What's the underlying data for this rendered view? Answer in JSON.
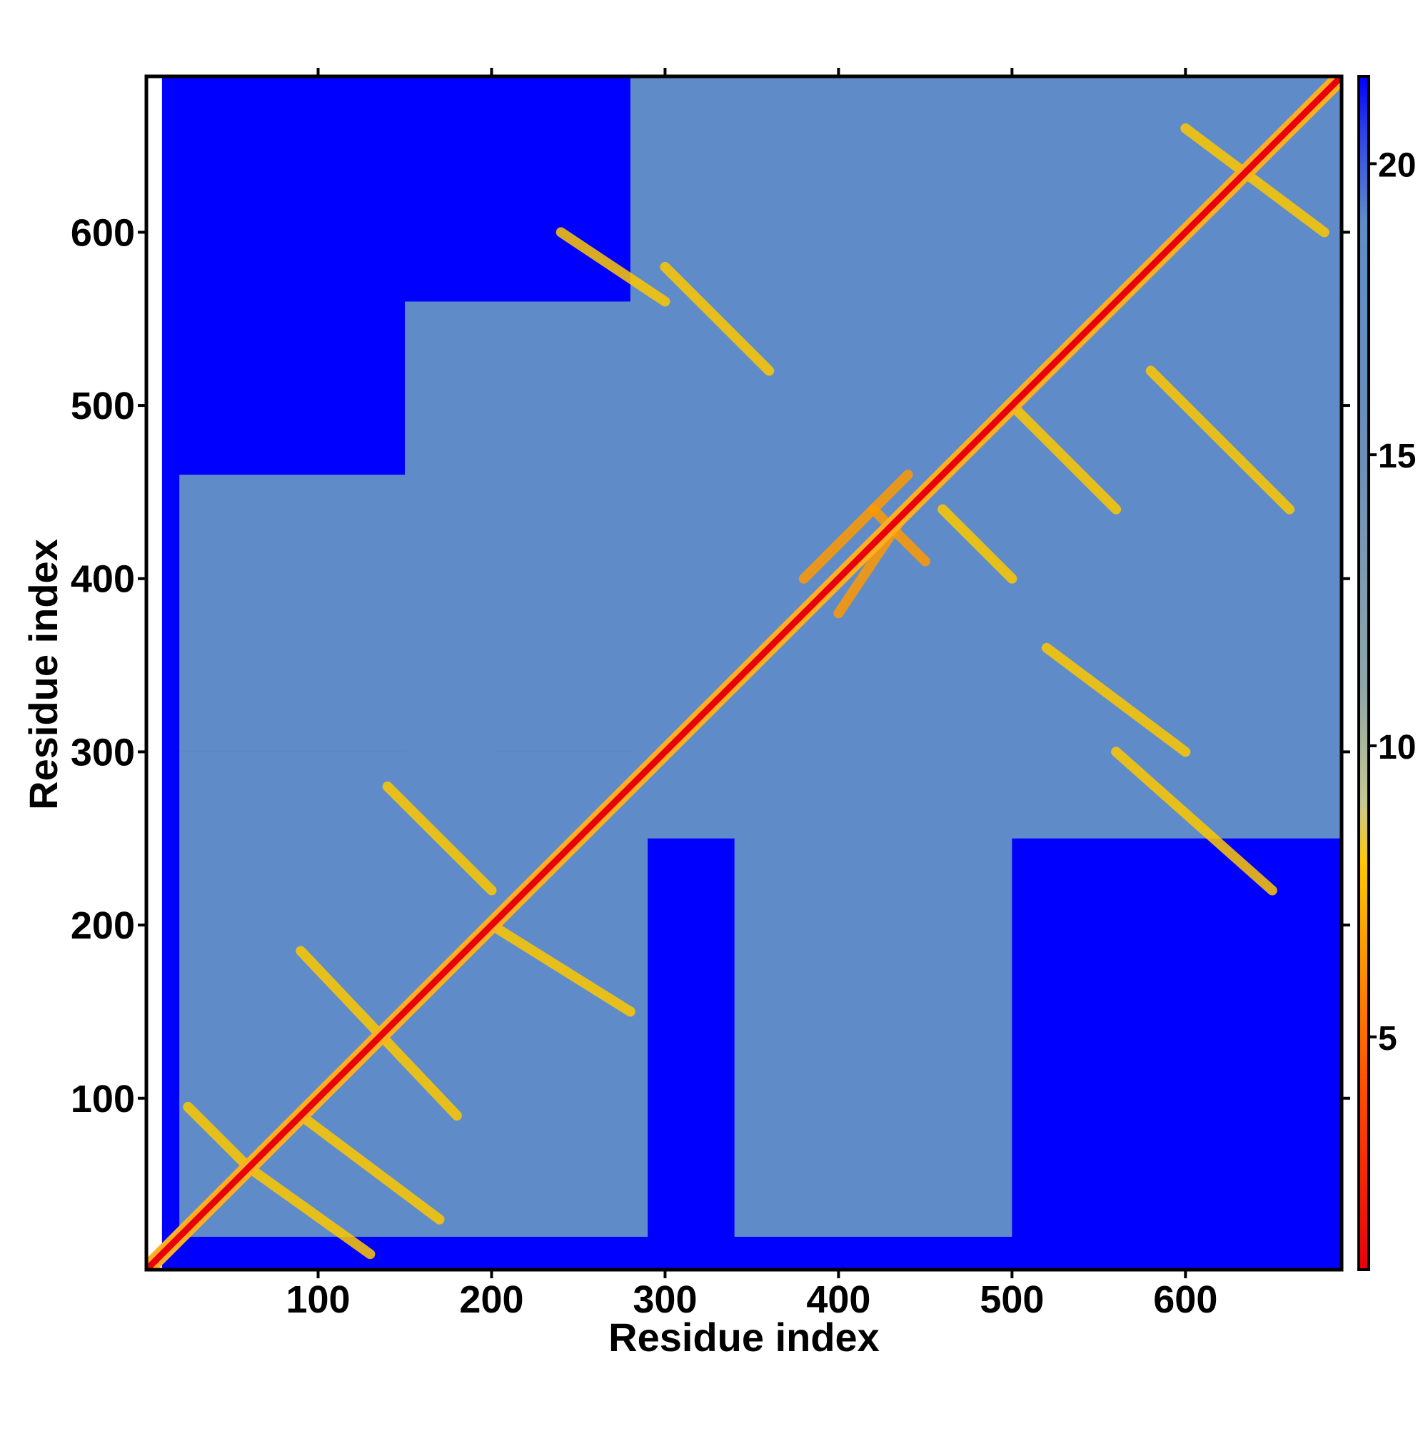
{
  "chart_data": {
    "type": "heatmap",
    "title": "",
    "xlabel": "Residue index",
    "ylabel": "Residue index",
    "xlim": [
      1,
      690
    ],
    "ylim": [
      1,
      690
    ],
    "x_ticks": [
      100,
      200,
      300,
      400,
      500,
      600
    ],
    "y_ticks": [
      100,
      200,
      300,
      400,
      500,
      600
    ],
    "x_tick_labels": [
      "100",
      "200",
      "300",
      "400",
      "500",
      "600"
    ],
    "y_tick_labels": [
      "100",
      "200",
      "300",
      "400",
      "500",
      "600"
    ],
    "colorbar": {
      "range": [
        1,
        21.5
      ],
      "ticks": [
        5,
        10,
        15,
        20
      ],
      "tick_labels": [
        "5",
        "10",
        "15",
        "20"
      ],
      "stops": [
        {
          "value": 1,
          "color": "#e8000b"
        },
        {
          "value": 4,
          "color": "#ff4a00"
        },
        {
          "value": 6.5,
          "color": "#ff9a00"
        },
        {
          "value": 8,
          "color": "#ffc800"
        },
        {
          "value": 9,
          "color": "#c8c890"
        },
        {
          "value": 11,
          "color": "#8fa6a8"
        },
        {
          "value": 15,
          "color": "#6b8fba"
        },
        {
          "value": 19,
          "color": "#5f8cc8"
        },
        {
          "value": 20.5,
          "color": "#2f45e8"
        },
        {
          "value": 21.5,
          "color": "#0000ff"
        }
      ]
    },
    "colors": {
      "far": "#0000ff",
      "mid": "#5f8ac6",
      "near": "#ffb020",
      "diagonal": "#e8000b"
    },
    "regions": [
      {
        "x": [
          10,
          690
        ],
        "y": [
          1,
          690
        ],
        "value": 21.5
      },
      {
        "x": [
          20,
          290
        ],
        "y": [
          20,
          300
        ],
        "value": 17
      },
      {
        "x": [
          280,
          690
        ],
        "y": [
          250,
          690
        ],
        "value": 17
      },
      {
        "x": [
          340,
          500
        ],
        "y": [
          20,
          690
        ],
        "value": 17
      },
      {
        "x": [
          150,
          690
        ],
        "y": [
          300,
          560
        ],
        "value": 17
      },
      {
        "x": [
          20,
          200
        ],
        "y": [
          300,
          460
        ],
        "value": 17
      }
    ],
    "contact_segments": [
      {
        "x": [
          60,
          130
        ],
        "y": [
          60,
          130
        ],
        "value": 7
      },
      {
        "x": [
          25,
          60
        ],
        "y": [
          95,
          60
        ],
        "value": 7
      },
      {
        "x": [
          60,
          130
        ],
        "y": [
          60,
          10
        ],
        "value": 7
      },
      {
        "x": [
          90,
          180
        ],
        "y": [
          185,
          90
        ],
        "value": 7
      },
      {
        "x": [
          200,
          280
        ],
        "y": [
          200,
          150
        ],
        "value": 7
      },
      {
        "x": [
          140,
          200
        ],
        "y": [
          280,
          220
        ],
        "value": 7
      },
      {
        "x": [
          300,
          360
        ],
        "y": [
          580,
          520
        ],
        "value": 7
      },
      {
        "x": [
          380,
          440
        ],
        "y": [
          400,
          460
        ],
        "value": 5
      },
      {
        "x": [
          400,
          440
        ],
        "y": [
          380,
          440
        ],
        "value": 5
      },
      {
        "x": [
          420,
          450
        ],
        "y": [
          440,
          410
        ],
        "value": 5
      },
      {
        "x": [
          460,
          500
        ],
        "y": [
          440,
          400
        ],
        "value": 7
      },
      {
        "x": [
          500,
          560
        ],
        "y": [
          500,
          440
        ],
        "value": 7
      },
      {
        "x": [
          520,
          600
        ],
        "y": [
          360,
          300
        ],
        "value": 7
      },
      {
        "x": [
          560,
          650
        ],
        "y": [
          300,
          220
        ],
        "value": 7
      },
      {
        "x": [
          580,
          660
        ],
        "y": [
          520,
          440
        ],
        "value": 7
      },
      {
        "x": [
          600,
          680
        ],
        "y": [
          660,
          600
        ],
        "value": 7
      },
      {
        "x": [
          240,
          300
        ],
        "y": [
          600,
          560
        ],
        "value": 7
      },
      {
        "x": [
          90,
          170
        ],
        "y": [
          90,
          30
        ],
        "value": 7
      }
    ]
  }
}
